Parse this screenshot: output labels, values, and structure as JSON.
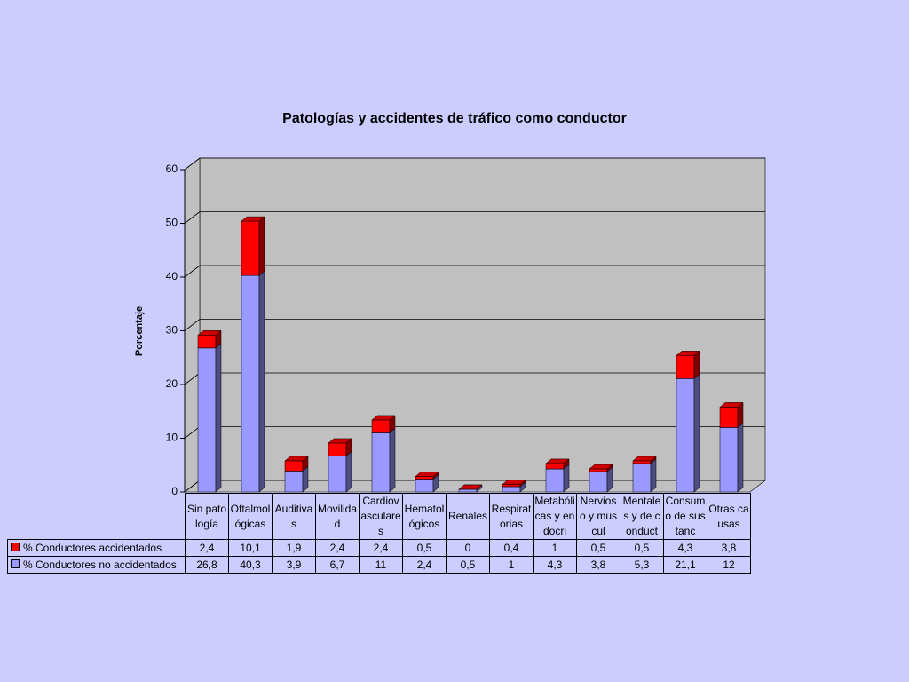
{
  "chart_data": {
    "type": "bar3d-stacked",
    "title": "Patologías y accidentes de tráfico como conductor",
    "y_label": "Porcentaje",
    "categories": [
      "Sin patología",
      "Oftalmológicas",
      "Auditivas",
      "Movilidad",
      "Cardiovasculares",
      "Hematológicos",
      "Renales",
      "Respiratorias",
      "Metabólicas y endocri",
      "Nervioso y muscul",
      "Mentales y de conduct",
      "Consumo de sustanc",
      "Otras causas"
    ],
    "series": [
      {
        "name": "% Conductores accidentados",
        "color": "#ff0000",
        "values": [
          2.4,
          10.1,
          1.9,
          2.4,
          2.4,
          0.5,
          0,
          0.4,
          1,
          0.5,
          0.5,
          4.3,
          3.8
        ],
        "value_labels": [
          "2,4",
          "10,1",
          "1,9",
          "2,4",
          "2,4",
          "0,5",
          "0",
          "0,4",
          "1",
          "0,5",
          "0,5",
          "4,3",
          "3,8"
        ]
      },
      {
        "name": "% Conductores no accidentados",
        "color": "#9999ff",
        "values": [
          26.8,
          40.3,
          3.9,
          6.7,
          11,
          2.4,
          0.5,
          1,
          4.3,
          3.8,
          5.3,
          21.1,
          12
        ],
        "value_labels": [
          "26,8",
          "40,3",
          "3,9",
          "6,7",
          "11",
          "2,4",
          "0,5",
          "1",
          "4,3",
          "3,8",
          "5,3",
          "21,1",
          "12"
        ]
      }
    ],
    "ylim": [
      0,
      60
    ],
    "yticks": [
      0,
      10,
      20,
      30,
      40,
      50,
      60
    ],
    "grid": true
  }
}
